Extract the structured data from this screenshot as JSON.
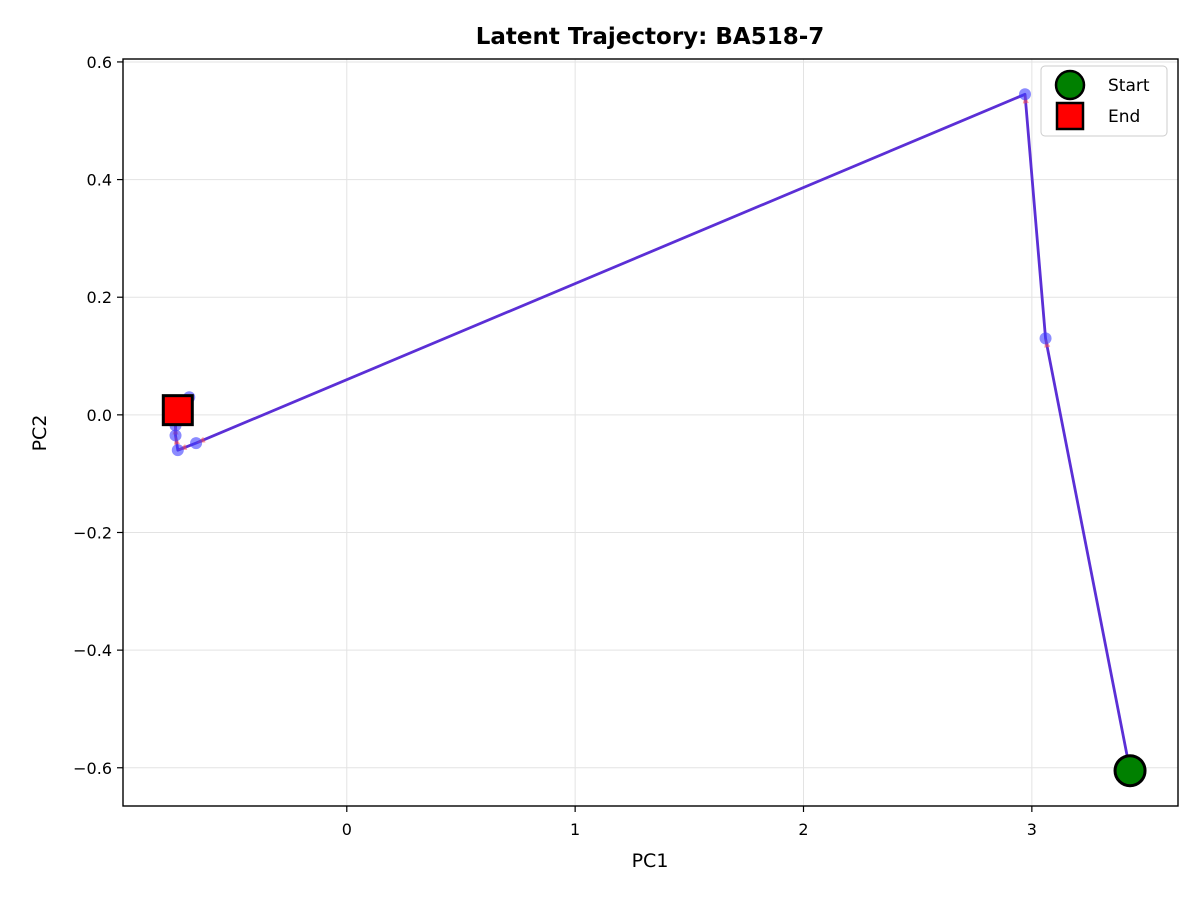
{
  "chart_data": {
    "type": "line",
    "title": "Latent Trajectory: BA518-7",
    "xlabel": "PC1",
    "ylabel": "PC2",
    "xlim": [
      -0.98,
      3.64
    ],
    "ylim": [
      -0.665,
      0.605
    ],
    "xticks": [
      0,
      1,
      2,
      3
    ],
    "yticks": [
      -0.6,
      -0.4,
      -0.2,
      0.0,
      0.2,
      0.4,
      0.6
    ],
    "xtick_labels": [
      "0",
      "1",
      "2",
      "3"
    ],
    "ytick_labels": [
      "−0.6",
      "−0.4",
      "−0.2",
      "0.0",
      "0.2",
      "0.4",
      "0.6"
    ],
    "grid": true,
    "legend_position": "top-right",
    "colors": {
      "line": "#5b2fd6",
      "points": "#3d3dff",
      "arrow": "#ff4d4d",
      "start": "#008000",
      "end": "#ff0000"
    },
    "series": [
      {
        "points": [
          {
            "x": 3.43,
            "y": -0.605
          },
          {
            "x": 3.06,
            "y": 0.13
          },
          {
            "x": 2.97,
            "y": 0.545
          },
          {
            "x": -0.66,
            "y": -0.048
          },
          {
            "x": -0.74,
            "y": -0.06
          },
          {
            "x": -0.75,
            "y": -0.035
          },
          {
            "x": -0.75,
            "y": -0.018
          },
          {
            "x": -0.69,
            "y": 0.03
          },
          {
            "x": -0.74,
            "y": 0.008
          }
        ]
      }
    ],
    "markers": [
      {
        "label": "Start",
        "shape": "circle",
        "x": 3.43,
        "y": -0.605
      },
      {
        "label": "End",
        "shape": "square",
        "x": -0.74,
        "y": 0.008
      }
    ]
  }
}
